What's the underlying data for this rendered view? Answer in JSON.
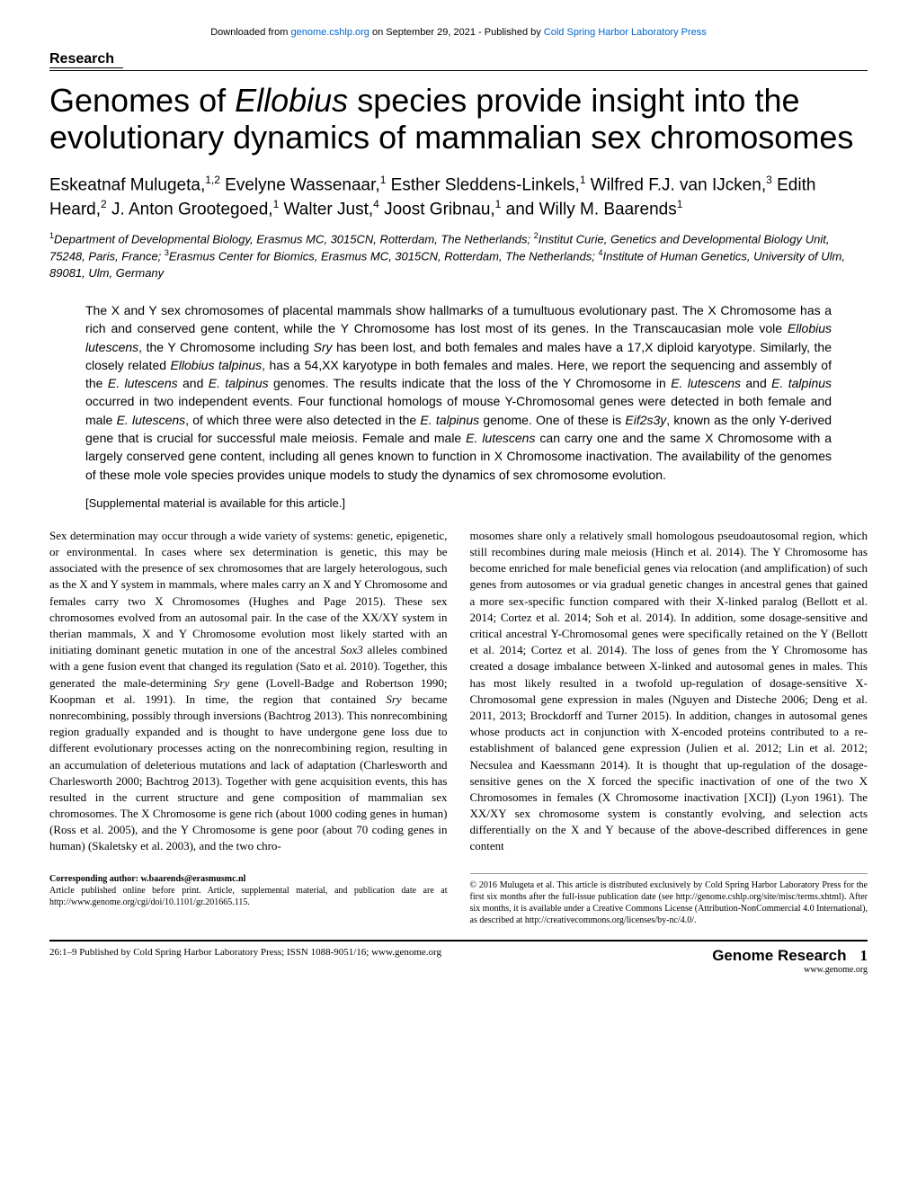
{
  "header": {
    "download_prefix": "Downloaded from ",
    "download_link": "genome.cshlp.org",
    "download_mid": " on September 29, 2021 - Published by ",
    "publisher_link": "Cold Spring Harbor Laboratory Press"
  },
  "section_label": "Research",
  "title_parts": {
    "p1": "Genomes of ",
    "italic": "Ellobius",
    "p2": " species provide insight into the evolutionary dynamics of mammalian sex chromosomes"
  },
  "authors_html": "Eskeatnaf Mulugeta,<sup>1,2</sup> Evelyne Wassenaar,<sup>1</sup> Esther Sleddens-Linkels,<sup>1</sup> Wilfred F.J. van IJcken,<sup>3</sup> Edith Heard,<sup>2</sup> J. Anton Grootegoed,<sup>1</sup> Walter Just,<sup>4</sup> Joost Gribnau,<sup>1</sup> and Willy M. Baarends<sup>1</sup>",
  "affiliations_html": "<sup>1</sup>Department of Developmental Biology, Erasmus MC, 3015CN, Rotterdam, The Netherlands; <sup>2</sup>Institut Curie, Genetics and Developmental Biology Unit, 75248, Paris, France; <sup>3</sup>Erasmus Center for Biomics, Erasmus MC, 3015CN, Rotterdam, The Netherlands; <sup>4</sup>Institute of Human Genetics, University of Ulm, 89081, Ulm, Germany",
  "abstract_html": "The X and Y sex chromosomes of placental mammals show hallmarks of a tumultuous evolutionary past. The X Chromosome has a rich and conserved gene content, while the Y Chromosome has lost most of its genes. In the Transcaucasian mole vole <span class=\"italic\">Ellobius lutescens</span>, the Y Chromosome including <span class=\"italic\">Sry</span> has been lost, and both females and males have a 17,X diploid karyotype. Similarly, the closely related <span class=\"italic\">Ellobius talpinus</span>, has a 54,XX karyotype in both females and males. Here, we report the sequencing and assembly of the <span class=\"italic\">E. lutescens</span> and <span class=\"italic\">E. talpinus</span> genomes. The results indicate that the loss of the Y Chromosome in <span class=\"italic\">E. lutescens</span> and <span class=\"italic\">E. talpinus</span> occurred in two independent events. Four functional homologs of mouse Y-Chromosomal genes were detected in both female and male <span class=\"italic\">E. lutescens</span>, of which three were also detected in the <span class=\"italic\">E. talpinus</span> genome. One of these is <span class=\"italic\">Eif2s3y</span>, known as the only Y-derived gene that is crucial for successful male meiosis. Female and male <span class=\"italic\">E. lutescens</span> can carry one and the same X Chromosome with a largely conserved gene content, including all genes known to function in X Chromosome inactivation. The availability of the genomes of these mole vole species provides unique models to study the dynamics of sex chromosome evolution.",
  "supplemental": "[Supplemental material is available for this article.]",
  "body": {
    "left_html": "Sex determination may occur through a wide variety of systems: genetic, epigenetic, or environmental. In cases where sex determination is genetic, this may be associated with the presence of sex chromosomes that are largely heterologous, such as the X and Y system in mammals, where males carry an X and Y Chromosome and females carry two X Chromosomes (Hughes and Page 2015). These sex chromosomes evolved from an autosomal pair. In the case of the XX/XY system in therian mammals, X and Y Chromosome evolution most likely started with an initiating dominant genetic mutation in one of the ancestral <span class=\"italic\">Sox3</span> alleles combined with a gene fusion event that changed its regulation (Sato et al. 2010). Together, this generated the male-determining <span class=\"italic\">Sry</span> gene (Lovell-Badge and Robertson 1990; Koopman et al. 1991). In time, the region that contained <span class=\"italic\">Sry</span> became nonrecombining, possibly through inversions (Bachtrog 2013). This nonrecombining region gradually expanded and is thought to have undergone gene loss due to different evolutionary processes acting on the nonrecombining region, resulting in an accumulation of deleterious mutations and lack of adaptation (Charlesworth and Charlesworth 2000; Bachtrog 2013). Together with gene acquisition events, this has resulted in the current structure and gene composition of mammalian sex chromosomes. The X Chromosome is gene rich (about 1000 coding genes in human) (Ross et al. 2005), and the Y Chromosome is gene poor (about 70 coding genes in human) (Skaletsky et al. 2003), and the two chro-",
    "right_html": "mosomes share only a relatively small homologous pseudoautosomal region, which still recombines during male meiosis (Hinch et al. 2014). The Y Chromosome has become enriched for male beneficial genes via relocation (and amplification) of such genes from autosomes or via gradual genetic changes in ancestral genes that gained a more sex-specific function compared with their X-linked paralog (Bellott et al. 2014; Cortez et al. 2014; Soh et al. 2014). In addition, some dosage-sensitive and critical ancestral Y-Chromosomal genes were specifically retained on the Y (Bellott et al. 2014; Cortez et al. 2014). The loss of genes from the Y Chromosome has created a dosage imbalance between X-linked and autosomal genes in males. This has most likely resulted in a twofold up-regulation of dosage-sensitive X-Chromosomal gene expression in males (Nguyen and Disteche 2006; Deng et al. 2011, 2013; Brockdorff and Turner 2015). In addition, changes in autosomal genes whose products act in conjunction with X-encoded proteins contributed to a re-establishment of balanced gene expression (Julien et al. 2012; Lin et al. 2012; Necsulea and Kaessmann 2014). It is thought that up-regulation of the dosage-sensitive genes on the X forced the specific inactivation of one of the two X Chromosomes in females (X Chromosome inactivation [XCI]) (Lyon 1961). The XX/XY sex chromosome system is constantly evolving, and selection acts differentially on the X and Y because of the above-described differences in gene content"
  },
  "corresponding": {
    "label": "Corresponding author: ",
    "email": "w.baarends@erasmusmc.nl",
    "note": "Article published online before print. Article, supplemental material, and publication date are at http://www.genome.org/cgi/doi/10.1101/gr.201665.115."
  },
  "copyright": "© 2016 Mulugeta et al.   This article is distributed exclusively by Cold Spring Harbor Laboratory Press for the first six months after the full-issue publication date (see http://genome.cshlp.org/site/misc/terms.xhtml). After six months, it is available under a Creative Commons License (Attribution-NonCommercial 4.0 International), as described at http://creativecommons.org/licenses/by-nc/4.0/.",
  "footer": {
    "left": "26:1–9 Published by Cold Spring Harbor Laboratory Press; ISSN 1088-9051/16; www.genome.org",
    "journal": "Genome Research",
    "page": "1",
    "url": "www.genome.org"
  }
}
